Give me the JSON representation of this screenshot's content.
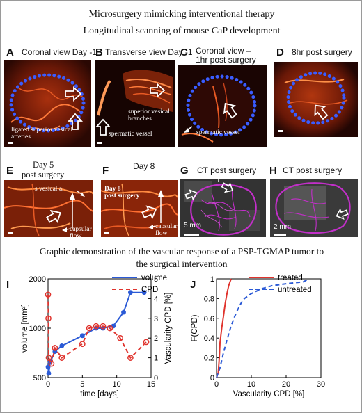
{
  "header": {
    "title": "Microsurgery mimicking interventional therapy",
    "subtitle": "Longitudinal  scanning of mouse CaP development"
  },
  "panels": {
    "A": {
      "letter": "A",
      "title": "Coronal view Day -1",
      "annotation": "ligated superior vesical arteries"
    },
    "B": {
      "letter": "B",
      "title": "Transverse view Day -1",
      "annotation_1": "superior vesical branches",
      "annotation_2": "spermatic vessel"
    },
    "C": {
      "letter": "C",
      "title_line1": "Coronal view –",
      "title_line2": "1hr post surgery",
      "annotation": "spermatic vessel"
    },
    "D": {
      "letter": "D",
      "title": "8hr post surgery"
    },
    "E": {
      "letter": "E",
      "title_line1": "Day 5",
      "title_line2": "post surgery",
      "annotation_1": "s vesical a.",
      "annotation_2": "capsular flow"
    },
    "F": {
      "letter": "F",
      "title": "Day 8",
      "inner_line1": "Day 8",
      "inner_line2": "post surgery",
      "annotation": "capsular flow"
    },
    "G": {
      "letter": "G",
      "title": "CT post surgery",
      "scale": "5 mm"
    },
    "H": {
      "letter": "H",
      "title": "CT post surgery",
      "scale": "2 mm"
    }
  },
  "section_caption": {
    "line1": "Graphic demonstration of the vascular response of a PSP-TGMAP tumor to",
    "line2": "the surgical intervention"
  },
  "colors": {
    "overlay_dots": "#3a5cff",
    "volume": "#2b5ad6",
    "cpd": "#e0342e",
    "treated": "#e0342e",
    "untreated": "#2b5ad6",
    "ct_overlay": "#c22fc9"
  },
  "chart_data": [
    {
      "panel": "I",
      "type": "line",
      "xlabel": "time [days]",
      "ylabel": "volume [mm³]",
      "ylabel_right": "Vascularity CPD [%]",
      "xlim": [
        0,
        15
      ],
      "ylim": [
        500,
        2000
      ],
      "ylim_right": [
        0,
        5
      ],
      "x_ticks": [
        0,
        5,
        10,
        15
      ],
      "y_ticks": [
        500,
        1000,
        2000
      ],
      "y_ticks_right": [
        0,
        1,
        2,
        3,
        4,
        5
      ],
      "y_scale": "log",
      "legend_position": "top",
      "series": [
        {
          "name": "volume",
          "axis": "left",
          "style": "solid",
          "x": [
            0,
            0.1,
            0.3,
            1,
            2,
            5,
            7,
            8,
            9.5,
            11,
            12,
            14
          ],
          "y": [
            580,
            530,
            620,
            720,
            780,
            900,
            1000,
            1000,
            1030,
            1250,
            1650,
            1650
          ]
        },
        {
          "name": "CPD",
          "axis": "right",
          "style": "dashed",
          "x": [
            0,
            0.05,
            0.1,
            0.5,
            1,
            2,
            5,
            6,
            7,
            8,
            9,
            10.5,
            12,
            14.3
          ],
          "y": [
            4.2,
            3.0,
            1.0,
            0.7,
            1.5,
            1.0,
            1.7,
            2.5,
            2.6,
            2.6,
            2.5,
            2.0,
            1.0,
            1.8
          ]
        }
      ]
    },
    {
      "panel": "J",
      "type": "line",
      "xlabel": "Vascularity CPD [%]",
      "ylabel": "F(CPD)",
      "xlim": [
        0,
        30
      ],
      "ylim": [
        0,
        1
      ],
      "x_ticks": [
        0,
        10,
        20,
        30
      ],
      "y_ticks": [
        0,
        0.2,
        0.4,
        0.6,
        0.8,
        1
      ],
      "legend_position": "top",
      "series": [
        {
          "name": "treated",
          "style": "solid",
          "x": [
            0,
            0.5,
            0.8,
            1.0,
            1.5,
            2.0,
            2.5,
            3.0,
            3.5,
            4.0,
            4.2
          ],
          "y": [
            0,
            0.05,
            0.2,
            0.35,
            0.5,
            0.62,
            0.75,
            0.85,
            0.93,
            0.98,
            1.0
          ]
        },
        {
          "name": "untreated",
          "style": "dashed",
          "x": [
            0,
            1,
            2,
            3,
            4,
            5,
            6,
            7,
            8,
            10,
            13,
            16,
            20,
            25,
            26.5
          ],
          "y": [
            0,
            0.1,
            0.25,
            0.38,
            0.5,
            0.6,
            0.68,
            0.75,
            0.8,
            0.85,
            0.9,
            0.93,
            0.95,
            0.97,
            1.0
          ]
        }
      ]
    }
  ]
}
